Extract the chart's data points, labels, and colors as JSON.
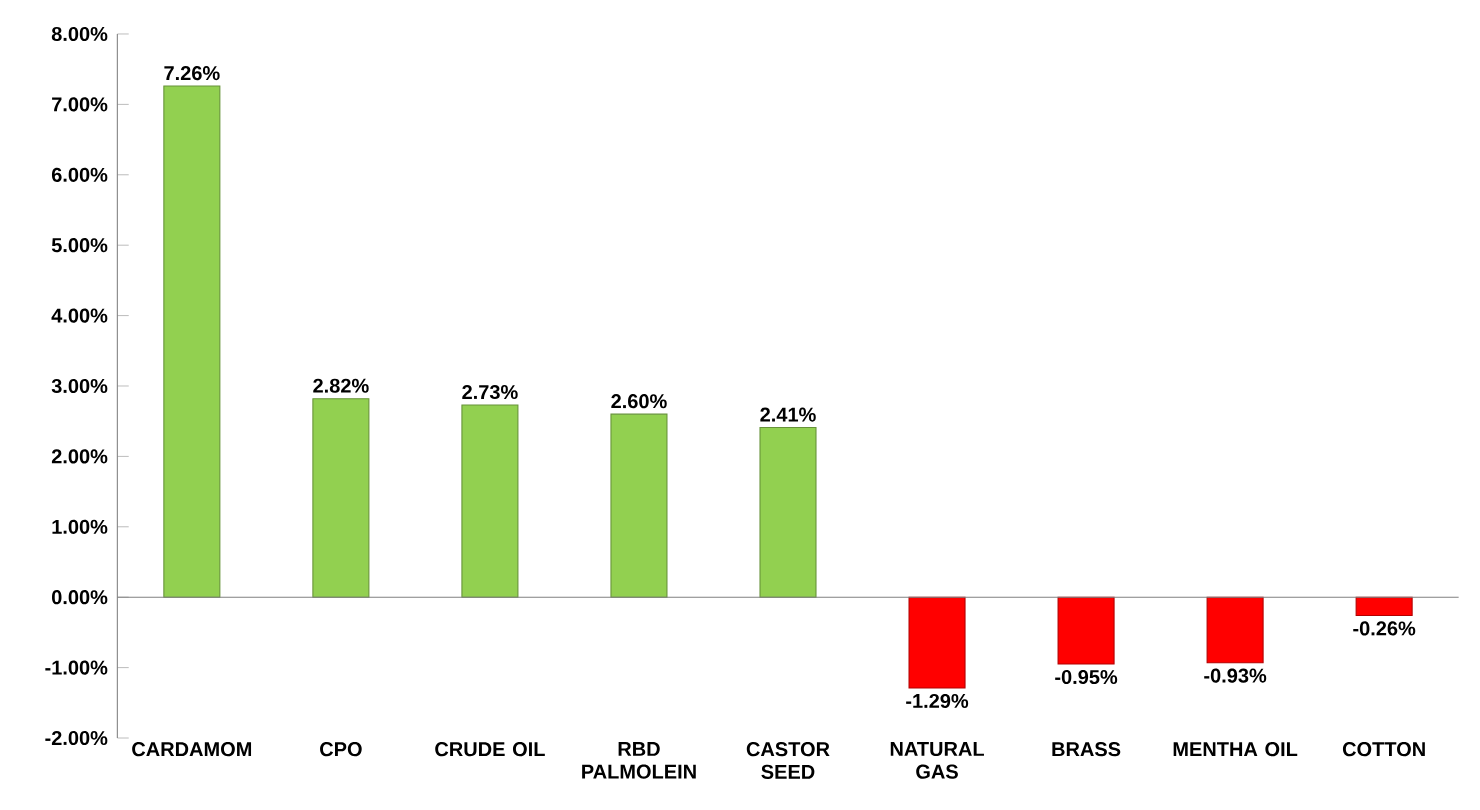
{
  "chart_data": {
    "type": "bar",
    "categories": [
      "CARDAMOM",
      "CPO",
      "CRUDE OIL",
      "RBD PALMOLEIN",
      "CASTOR SEED",
      "NATURAL GAS",
      "BRASS",
      "MENTHA OIL",
      "COTTON"
    ],
    "values": [
      7.26,
      2.82,
      2.73,
      2.6,
      2.41,
      -1.29,
      -0.95,
      -0.93,
      -0.26
    ],
    "value_labels": [
      "7.26%",
      "2.82%",
      "2.73%",
      "2.60%",
      "2.41%",
      "-1.29%",
      "-0.95%",
      "-0.93%",
      "-0.26%"
    ],
    "colors": [
      "#92d050",
      "#92d050",
      "#92d050",
      "#92d050",
      "#92d050",
      "#ff0000",
      "#ff0000",
      "#ff0000",
      "#ff0000"
    ],
    "ylim": [
      -2,
      8
    ],
    "yticks": [
      {
        "value": -2,
        "label": "-2.00%"
      },
      {
        "value": -1,
        "label": "-1.00%"
      },
      {
        "value": 0,
        "label": "0.00%"
      },
      {
        "value": 1,
        "label": "1.00%"
      },
      {
        "value": 2,
        "label": "2.00%"
      },
      {
        "value": 3,
        "label": "3.00%"
      },
      {
        "value": 4,
        "label": "4.00%"
      },
      {
        "value": 5,
        "label": "5.00%"
      },
      {
        "value": 6,
        "label": "6.00%"
      },
      {
        "value": 7,
        "label": "7.00%"
      },
      {
        "value": 8,
        "label": "8.00%"
      }
    ],
    "relative": false
  }
}
